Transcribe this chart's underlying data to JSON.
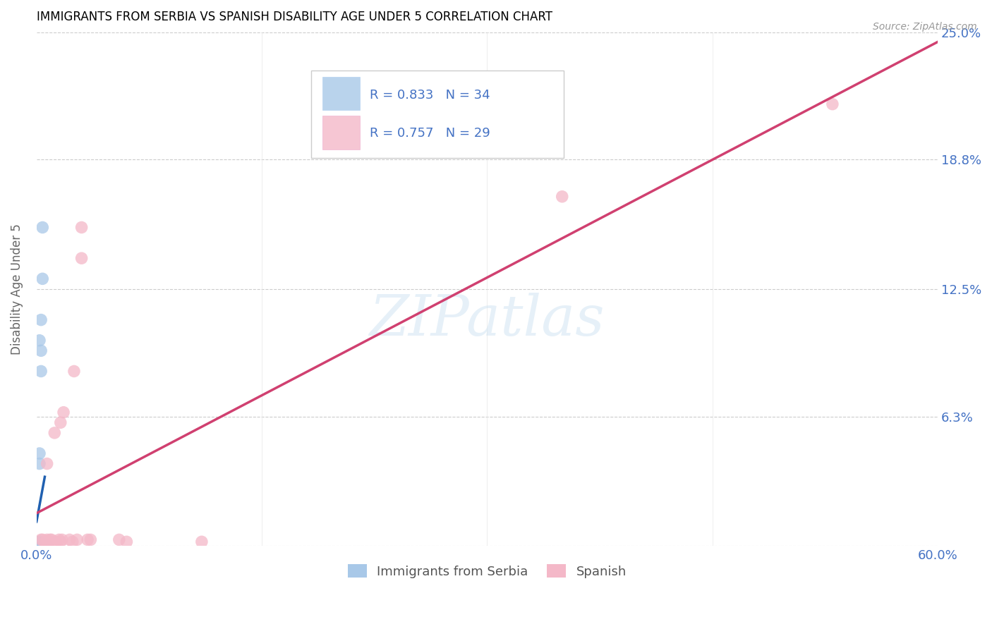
{
  "title": "IMMIGRANTS FROM SERBIA VS SPANISH DISABILITY AGE UNDER 5 CORRELATION CHART",
  "source": "Source: ZipAtlas.com",
  "ylabel_label": "Disability Age Under 5",
  "watermark": "ZIPatlas",
  "legend_serbia": "Immigrants from Serbia",
  "legend_spanish": "Spanish",
  "R_serbia": "0.833",
  "N_serbia": "34",
  "R_spanish": "0.757",
  "N_spanish": "29",
  "serbia_color": "#a8c8e8",
  "spanish_color": "#f4b8c8",
  "serbia_line_color": "#2060b0",
  "spanish_line_color": "#d04070",
  "axis_label_color": "#4472c4",
  "text_color_rn": "#4472c4",
  "xlim": [
    0.0,
    0.6
  ],
  "ylim": [
    0.0,
    0.25
  ],
  "xticks": [
    0.0,
    0.15,
    0.3,
    0.45,
    0.6
  ],
  "yticks": [
    0.0,
    0.063,
    0.125,
    0.188,
    0.25
  ],
  "xticklabels": [
    "0.0%",
    "",
    "",
    "",
    "60.0%"
  ],
  "yticklabels": [
    "",
    "6.3%",
    "12.5%",
    "18.8%",
    "25.0%"
  ],
  "serbia_x": [
    0.001,
    0.001,
    0.001,
    0.001,
    0.001,
    0.001,
    0.001,
    0.002,
    0.002,
    0.002,
    0.002,
    0.002,
    0.002,
    0.002,
    0.002,
    0.002,
    0.002,
    0.002,
    0.003,
    0.003,
    0.003,
    0.003,
    0.003,
    0.003,
    0.003,
    0.004,
    0.004,
    0.004,
    0.004,
    0.004,
    0.005,
    0.005,
    0.006,
    0.007
  ],
  "serbia_y": [
    0.0,
    0.0,
    0.0,
    0.0,
    0.0,
    0.001,
    0.001,
    0.0,
    0.0,
    0.0,
    0.0,
    0.001,
    0.001,
    0.002,
    0.002,
    0.04,
    0.045,
    0.1,
    0.0,
    0.0,
    0.001,
    0.001,
    0.085,
    0.095,
    0.11,
    0.0,
    0.0,
    0.001,
    0.13,
    0.155,
    0.0,
    0.0,
    0.0,
    0.0
  ],
  "spanish_x": [
    0.003,
    0.004,
    0.006,
    0.007,
    0.007,
    0.008,
    0.009,
    0.01,
    0.012,
    0.012,
    0.013,
    0.015,
    0.016,
    0.016,
    0.017,
    0.018,
    0.022,
    0.024,
    0.025,
    0.027,
    0.03,
    0.03,
    0.034,
    0.036,
    0.055,
    0.06,
    0.11,
    0.35,
    0.53
  ],
  "spanish_y": [
    0.003,
    0.003,
    0.002,
    0.003,
    0.04,
    0.002,
    0.003,
    0.003,
    0.002,
    0.055,
    0.002,
    0.003,
    0.002,
    0.06,
    0.003,
    0.065,
    0.003,
    0.002,
    0.085,
    0.003,
    0.14,
    0.155,
    0.003,
    0.003,
    0.003,
    0.002,
    0.002,
    0.17,
    0.215
  ]
}
